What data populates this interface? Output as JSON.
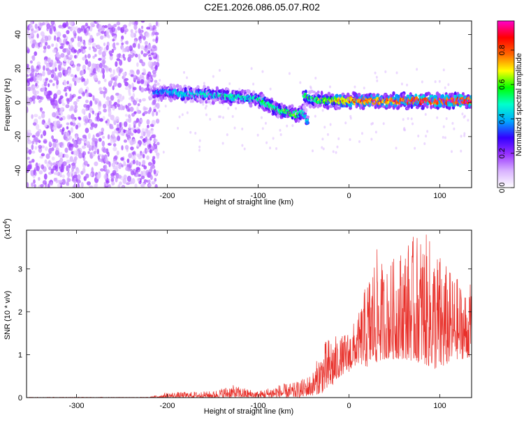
{
  "title": "C2E1.2026.086.05.07.R02",
  "chart_data": [
    {
      "type": "heatmap",
      "title": "C2E1.2026.086.05.07.R02",
      "xlabel": "Height of straight line (km)",
      "ylabel": "Frequency (Hz)",
      "xlim": [
        -355,
        135
      ],
      "ylim": [
        -50,
        48
      ],
      "xticks": [
        -300,
        -200,
        -100,
        0,
        100
      ],
      "yticks": [
        -40,
        -20,
        0,
        20,
        40
      ],
      "colorbar": {
        "label": "Normalized spectral amplitude",
        "range": [
          0,
          0.97
        ],
        "ticks": [
          0,
          0.2,
          0.4,
          0.6,
          0.8
        ],
        "colors": [
          "#ffffff",
          "#d9b3ff",
          "#9933ff",
          "#3300ff",
          "#00aaff",
          "#00ffcc",
          "#00ff00",
          "#ffff00",
          "#ff6600",
          "#ff0000",
          "#ff00cc"
        ]
      },
      "noise_region": {
        "x": [
          -355,
          -210
        ],
        "y": [
          -50,
          48
        ],
        "amplitude": [
          0.05,
          0.2
        ]
      },
      "signal_track": [
        {
          "x": -215,
          "y": 6,
          "amplitude": 0.35
        },
        {
          "x": -200,
          "y": 6,
          "amplitude": 0.4
        },
        {
          "x": -180,
          "y": 5,
          "amplitude": 0.45
        },
        {
          "x": -160,
          "y": 5,
          "amplitude": 0.45
        },
        {
          "x": -140,
          "y": 4,
          "amplitude": 0.5
        },
        {
          "x": -120,
          "y": 3,
          "amplitude": 0.5
        },
        {
          "x": -100,
          "y": 2,
          "amplitude": 0.5
        },
        {
          "x": -90,
          "y": -1,
          "amplitude": 0.55
        },
        {
          "x": -80,
          "y": -4,
          "amplitude": 0.55
        },
        {
          "x": -70,
          "y": -5,
          "amplitude": 0.6
        },
        {
          "x": -60,
          "y": -7,
          "amplitude": 0.6
        },
        {
          "x": -50,
          "y": -6,
          "amplitude": 0.5
        },
        {
          "x": -45,
          "y": -11,
          "amplitude": 0.4
        },
        {
          "x": -50,
          "y": 4,
          "amplitude": 0.55
        },
        {
          "x": -40,
          "y": 2,
          "amplitude": 0.55
        },
        {
          "x": -20,
          "y": 1,
          "amplitude": 0.7
        },
        {
          "x": 0,
          "y": 1,
          "amplitude": 0.8
        },
        {
          "x": 20,
          "y": 1,
          "amplitude": 0.85
        },
        {
          "x": 40,
          "y": 1,
          "amplitude": 0.85
        },
        {
          "x": 60,
          "y": 1,
          "amplitude": 0.9
        },
        {
          "x": 80,
          "y": 1,
          "amplitude": 0.95
        },
        {
          "x": 100,
          "y": 1,
          "amplitude": 0.9
        },
        {
          "x": 120,
          "y": 1,
          "amplitude": 0.95
        },
        {
          "x": 135,
          "y": 1,
          "amplitude": 0.9
        }
      ]
    },
    {
      "type": "line",
      "xlabel": "Height of straight line (km)",
      "ylabel": "SNR (10 * v/v)",
      "y_multiplier": "(x10^4)",
      "xlim": [
        -355,
        135
      ],
      "ylim": [
        0,
        3.9
      ],
      "xticks": [
        -300,
        -200,
        -100,
        0,
        100
      ],
      "yticks": [
        0,
        1,
        2,
        3
      ],
      "color": "#e8302a",
      "envelope": {
        "x": [
          -355,
          -220,
          -200,
          -150,
          -130,
          -100,
          -80,
          -60,
          -50,
          -40,
          -30,
          -20,
          -10,
          0,
          10,
          20,
          30,
          40,
          60,
          80,
          90,
          100,
          110,
          120,
          130,
          135
        ],
        "low": [
          0,
          0,
          0,
          0,
          0,
          0,
          0,
          0,
          0.02,
          0.05,
          0.1,
          0.2,
          0.5,
          0.6,
          0.8,
          0.7,
          0.8,
          0.9,
          0.9,
          0.8,
          0.7,
          0.6,
          0.8,
          0.9,
          0.9,
          1.0
        ],
        "high": [
          0.01,
          0.01,
          0.12,
          0.15,
          0.3,
          0.15,
          0.3,
          0.35,
          0.45,
          0.6,
          1.2,
          1.5,
          1.4,
          1.6,
          1.9,
          2.8,
          3.5,
          3.0,
          3.6,
          3.9,
          3.7,
          3.4,
          3.0,
          2.8,
          2.5,
          2.7
        ]
      }
    }
  ]
}
